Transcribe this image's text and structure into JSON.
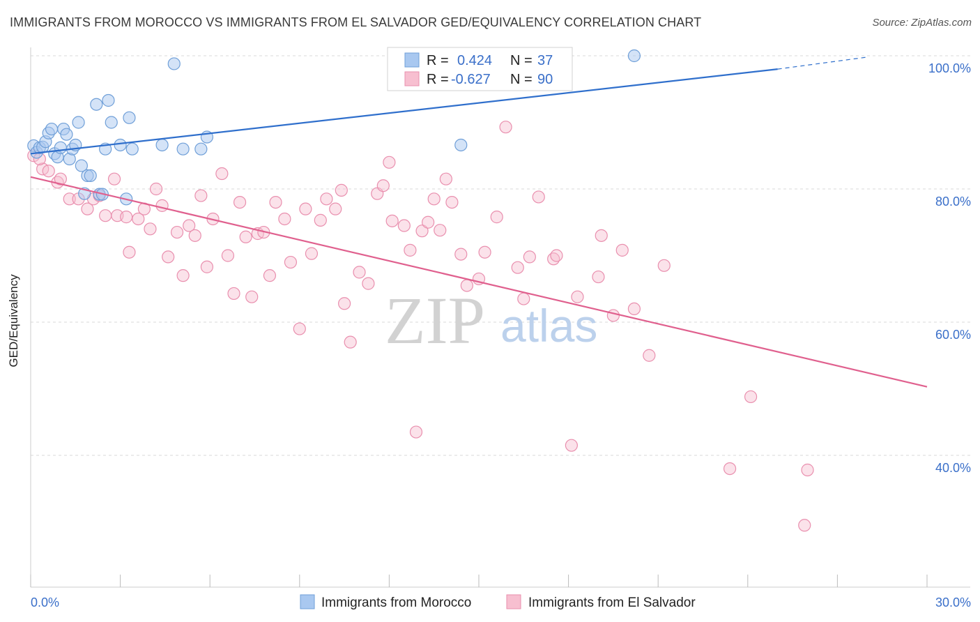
{
  "header": {
    "title": "IMMIGRANTS FROM MOROCCO VS IMMIGRANTS FROM EL SALVADOR GED/EQUIVALENCY CORRELATION CHART",
    "source": "Source: ZipAtlas.com"
  },
  "watermark": {
    "zip": "ZIP",
    "atlas": "atlas"
  },
  "stats": [
    {
      "r_label": "R =",
      "r_value": "0.424",
      "n_label": "N =",
      "n_value": "37"
    },
    {
      "r_label": "R =",
      "r_value": "-0.627",
      "n_label": "N =",
      "n_value": "90"
    }
  ],
  "colors": {
    "morocco_fill": "#a9c8f0",
    "morocco_stroke": "#6f9fd8",
    "morocco_line": "#2f6fcc",
    "salvador_fill": "#f7bfd0",
    "salvador_stroke": "#e98fae",
    "salvador_line": "#e0608e",
    "tick_text": "#3a6fc9",
    "grid": "#d9d9d9"
  },
  "chart_data": {
    "type": "scatter",
    "title": "IMMIGRANTS FROM MOROCCO VS IMMIGRANTS FROM EL SALVADOR GED/EQUIVALENCY CORRELATION CHART",
    "xlabel": "",
    "ylabel": "GED/Equivalency",
    "xlim": [
      0,
      30
    ],
    "ylim": [
      20,
      102
    ],
    "x_tick_labels": [
      "0.0%",
      "30.0%"
    ],
    "y_ticks": [
      40,
      60,
      80,
      100
    ],
    "y_tick_labels": [
      "40.0%",
      "60.0%",
      "80.0%",
      "100.0%"
    ],
    "grid": true,
    "legend_position": "bottom",
    "series": [
      {
        "name": "Immigrants from Morocco",
        "r": 0.424,
        "n": 37,
        "trend": {
          "x0": 0,
          "y0": 85.3,
          "x1": 25.0,
          "y1": 98.0,
          "dashed_to_x": 28.0,
          "dashed_to_y": 99.8
        },
        "points": [
          [
            0.1,
            86.5
          ],
          [
            0.2,
            85.5
          ],
          [
            0.3,
            86.2
          ],
          [
            0.4,
            86.3
          ],
          [
            0.5,
            87.1
          ],
          [
            0.6,
            88.4
          ],
          [
            0.7,
            89.0
          ],
          [
            0.8,
            85.3
          ],
          [
            0.9,
            84.8
          ],
          [
            1.0,
            86.2
          ],
          [
            1.1,
            89.0
          ],
          [
            1.2,
            88.2
          ],
          [
            1.3,
            84.5
          ],
          [
            1.4,
            86.0
          ],
          [
            1.5,
            86.6
          ],
          [
            1.6,
            90.0
          ],
          [
            1.7,
            83.5
          ],
          [
            1.8,
            79.3
          ],
          [
            1.9,
            82.0
          ],
          [
            2.0,
            82.0
          ],
          [
            2.2,
            92.7
          ],
          [
            2.3,
            79.2
          ],
          [
            2.4,
            79.2
          ],
          [
            2.5,
            86.0
          ],
          [
            2.6,
            93.3
          ],
          [
            2.7,
            90.0
          ],
          [
            3.0,
            86.6
          ],
          [
            3.2,
            78.5
          ],
          [
            3.3,
            90.7
          ],
          [
            3.4,
            86.0
          ],
          [
            4.4,
            86.6
          ],
          [
            4.8,
            98.8
          ],
          [
            5.1,
            86.0
          ],
          [
            5.7,
            86.0
          ],
          [
            5.9,
            87.8
          ],
          [
            14.4,
            86.6
          ],
          [
            20.2,
            100.0
          ]
        ]
      },
      {
        "name": "Immigrants from El Salvador",
        "r": -0.627,
        "n": 90,
        "trend": {
          "x0": 0,
          "y0": 81.8,
          "x1": 30,
          "y1": 50.3
        },
        "points": [
          [
            0.1,
            85.0
          ],
          [
            0.4,
            83.0
          ],
          [
            0.9,
            81.0
          ],
          [
            1.0,
            81.5
          ],
          [
            1.3,
            78.5
          ],
          [
            1.6,
            78.5
          ],
          [
            1.9,
            77.0
          ],
          [
            2.1,
            78.5
          ],
          [
            2.3,
            79.0
          ],
          [
            2.5,
            76.0
          ],
          [
            2.8,
            81.5
          ],
          [
            2.9,
            76.0
          ],
          [
            3.2,
            75.8
          ],
          [
            3.3,
            70.5
          ],
          [
            3.6,
            75.5
          ],
          [
            3.8,
            77.0
          ],
          [
            4.0,
            74.0
          ],
          [
            4.2,
            80.0
          ],
          [
            4.4,
            77.5
          ],
          [
            4.6,
            69.8
          ],
          [
            4.9,
            73.5
          ],
          [
            5.1,
            67.0
          ],
          [
            5.3,
            74.5
          ],
          [
            5.5,
            73.0
          ],
          [
            5.7,
            79.0
          ],
          [
            5.9,
            68.3
          ],
          [
            6.1,
            75.5
          ],
          [
            6.4,
            82.3
          ],
          [
            6.6,
            70.0
          ],
          [
            6.8,
            64.3
          ],
          [
            7.0,
            78.0
          ],
          [
            7.2,
            72.8
          ],
          [
            7.4,
            63.8
          ],
          [
            7.6,
            73.3
          ],
          [
            7.8,
            73.5
          ],
          [
            8.0,
            67.0
          ],
          [
            8.2,
            78.0
          ],
          [
            8.5,
            75.5
          ],
          [
            8.7,
            69.0
          ],
          [
            9.0,
            59.0
          ],
          [
            9.2,
            77.0
          ],
          [
            9.4,
            70.3
          ],
          [
            9.7,
            75.3
          ],
          [
            9.9,
            78.5
          ],
          [
            10.2,
            77.0
          ],
          [
            10.4,
            79.8
          ],
          [
            10.5,
            62.8
          ],
          [
            10.7,
            57.0
          ],
          [
            11.0,
            67.5
          ],
          [
            11.3,
            65.8
          ],
          [
            11.6,
            79.3
          ],
          [
            11.8,
            80.5
          ],
          [
            12.0,
            84.0
          ],
          [
            12.1,
            75.2
          ],
          [
            12.5,
            74.5
          ],
          [
            12.7,
            70.8
          ],
          [
            12.9,
            43.5
          ],
          [
            13.1,
            73.7
          ],
          [
            13.3,
            75.0
          ],
          [
            13.5,
            78.5
          ],
          [
            13.7,
            73.8
          ],
          [
            13.9,
            81.5
          ],
          [
            14.1,
            78.0
          ],
          [
            14.4,
            70.2
          ],
          [
            14.6,
            65.5
          ],
          [
            15.0,
            66.5
          ],
          [
            15.2,
            70.5
          ],
          [
            15.6,
            75.8
          ],
          [
            15.9,
            89.3
          ],
          [
            16.3,
            68.2
          ],
          [
            16.5,
            63.5
          ],
          [
            16.7,
            69.8
          ],
          [
            17.0,
            78.8
          ],
          [
            17.5,
            69.5
          ],
          [
            17.6,
            70.0
          ],
          [
            18.1,
            41.5
          ],
          [
            18.3,
            63.8
          ],
          [
            19.0,
            66.8
          ],
          [
            19.1,
            73.0
          ],
          [
            19.5,
            61.0
          ],
          [
            19.8,
            70.8
          ],
          [
            20.2,
            62.0
          ],
          [
            20.7,
            55.0
          ],
          [
            21.2,
            68.5
          ],
          [
            24.1,
            48.8
          ],
          [
            23.4,
            38.0
          ],
          [
            26.0,
            37.8
          ],
          [
            25.9,
            29.5
          ],
          [
            0.3,
            84.5
          ],
          [
            0.6,
            82.7
          ]
        ]
      }
    ]
  }
}
